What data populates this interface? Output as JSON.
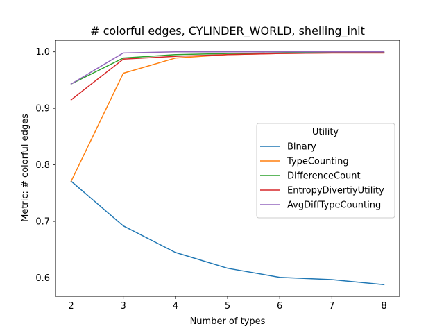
{
  "chart_data": {
    "type": "line",
    "title": "# colorful edges, CYLINDER_WORLD, shelling_init",
    "xlabel": "Number of types",
    "ylabel": "Metric: # colorful edges",
    "x": [
      2,
      3,
      4,
      5,
      6,
      7,
      8
    ],
    "xticks": [
      "2",
      "3",
      "4",
      "5",
      "6",
      "7",
      "8"
    ],
    "yticks": [
      "0.6",
      "0.7",
      "0.8",
      "0.9",
      "1.0"
    ],
    "xlim": [
      1.7,
      8.3
    ],
    "ylim": [
      0.5675,
      1.0205
    ],
    "grid": false,
    "legend": {
      "title": "Utility",
      "placement": "center-right"
    },
    "series": [
      {
        "name": "Binary",
        "color": "#1f77b4",
        "values": [
          0.771,
          0.692,
          0.645,
          0.617,
          0.601,
          0.597,
          0.588
        ]
      },
      {
        "name": "TypeCounting",
        "color": "#ff7f0e",
        "values": [
          0.771,
          0.962,
          0.989,
          0.995,
          0.997,
          0.998,
          0.998
        ]
      },
      {
        "name": "DifferenceCount",
        "color": "#2ca02c",
        "values": [
          0.943,
          0.989,
          0.995,
          0.997,
          0.998,
          0.999,
          0.999
        ]
      },
      {
        "name": "EntropyDivertiyUtility",
        "color": "#d62728",
        "values": [
          0.915,
          0.987,
          0.992,
          0.995,
          0.997,
          0.998,
          0.998
        ]
      },
      {
        "name": "AvgDiffTypeCounting",
        "color": "#9467bd",
        "values": [
          0.943,
          0.998,
          1.0,
          1.0,
          1.0,
          1.0,
          1.0
        ]
      }
    ]
  }
}
